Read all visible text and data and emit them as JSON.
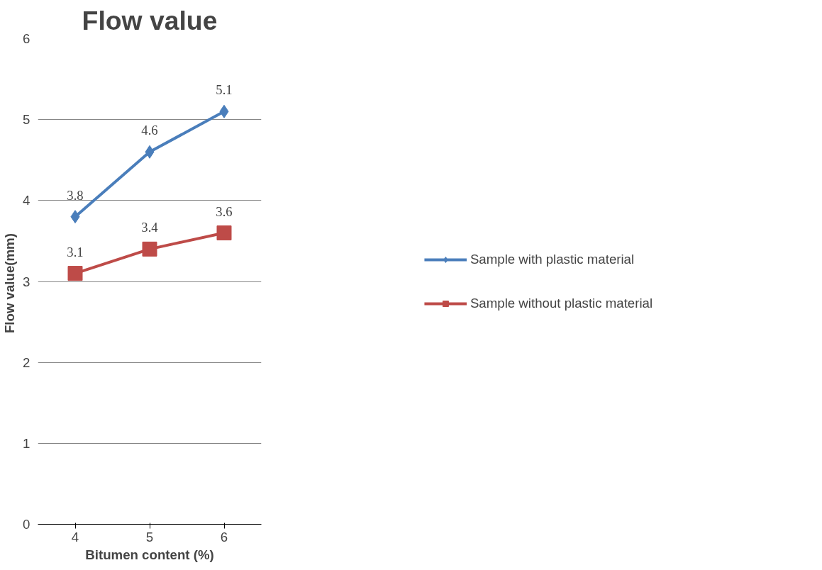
{
  "chart_data": {
    "type": "line",
    "title": "Flow value",
    "xlabel": "Bitumen content (%)",
    "ylabel": "Flow  value(mm)",
    "categories": [
      "4",
      "5",
      "6"
    ],
    "series": [
      {
        "name": "Sample with plastic material",
        "color": "#4a7ebb",
        "marker": "diamond",
        "values": [
          3.8,
          4.6,
          5.1
        ]
      },
      {
        "name": "Sample without plastic material",
        "color": "#be4b48",
        "marker": "square",
        "values": [
          3.1,
          3.4,
          3.6
        ]
      }
    ],
    "ylim": [
      0,
      6
    ],
    "yticks": [
      0,
      1,
      2,
      3,
      4,
      5,
      6
    ],
    "grid": "y",
    "legend": "right",
    "data_labels": true
  }
}
